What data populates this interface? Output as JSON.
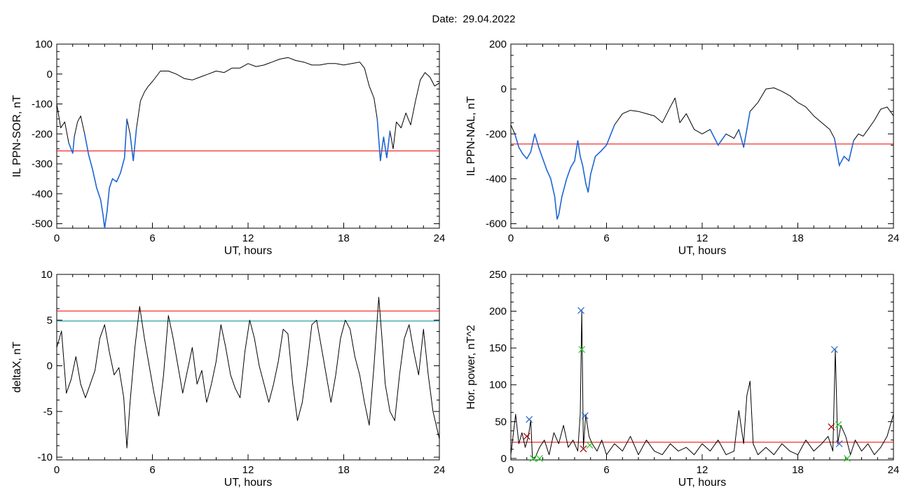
{
  "header": {
    "date_label": "Date:",
    "date_value": "29.04.2022"
  },
  "colors": {
    "axis": "#000000",
    "curve": "#000000",
    "highlight": "#1f66d6",
    "red": "#ee0000",
    "teal": "#008b8b",
    "green": "#22cc22",
    "darkred": "#aa0000",
    "blue": "#2266cc"
  },
  "chart_data": [
    {
      "type": "line",
      "xlabel": "UT, hours",
      "ylabel": "IL PPN-SOR, nT",
      "xlim": [
        0,
        24
      ],
      "ylim": [
        -515,
        100
      ],
      "xticks": [
        "0",
        "6",
        "12",
        "18",
        "24"
      ],
      "yticks": [
        "-500",
        "-400",
        "-300",
        "-200",
        "-100",
        "0",
        "100"
      ],
      "threshold": {
        "value": -257,
        "color": "red"
      },
      "highlight_below": -257,
      "series": [
        {
          "x": [
            0,
            0.25,
            0.5,
            0.75,
            1.0,
            1.1,
            1.3,
            1.5,
            1.75,
            2.0,
            2.25,
            2.5,
            2.75,
            2.9,
            3.0,
            3.15,
            3.3,
            3.5,
            3.75,
            4.0,
            4.25,
            4.4,
            4.6,
            4.8,
            5.0,
            5.25,
            5.5,
            5.75,
            6.0,
            6.5,
            7.0,
            7.5,
            8.0,
            8.5,
            9.0,
            9.5,
            10.0,
            10.5,
            11.0,
            11.5,
            12.0,
            12.5,
            13.0,
            13.5,
            14.0,
            14.5,
            15.0,
            15.5,
            16.0,
            16.5,
            17.0,
            17.5,
            18.0,
            18.5,
            19.0,
            19.3,
            19.6,
            19.9,
            20.1,
            20.3,
            20.5,
            20.7,
            20.9,
            21.1,
            21.3,
            21.6,
            21.9,
            22.2,
            22.5,
            22.8,
            23.1,
            23.4,
            23.7,
            24.0
          ],
          "y": [
            -100,
            -180,
            -160,
            -230,
            -265,
            -210,
            -160,
            -140,
            -200,
            -270,
            -320,
            -380,
            -420,
            -470,
            -515,
            -460,
            -380,
            -350,
            -360,
            -330,
            -280,
            -150,
            -200,
            -290,
            -180,
            -90,
            -60,
            -40,
            -25,
            10,
            10,
            0,
            -15,
            -20,
            -10,
            0,
            10,
            5,
            20,
            20,
            35,
            25,
            30,
            40,
            50,
            55,
            45,
            40,
            30,
            30,
            35,
            35,
            30,
            35,
            40,
            20,
            -40,
            -80,
            -150,
            -290,
            -210,
            -280,
            -190,
            -250,
            -160,
            -180,
            -130,
            -170,
            -90,
            -20,
            5,
            -10,
            -40,
            -30
          ]
        }
      ]
    },
    {
      "type": "line",
      "xlabel": "UT, hours",
      "ylabel": "IL PPN-NAL, nT",
      "xlim": [
        0,
        24
      ],
      "ylim": [
        -620,
        200
      ],
      "xticks": [
        "0",
        "6",
        "12",
        "18",
        "24"
      ],
      "yticks": [
        "-600",
        "-400",
        "-200",
        "0",
        "200"
      ],
      "threshold": {
        "value": -245,
        "color": "red"
      },
      "highlight_below": -245,
      "series": [
        {
          "x": [
            0,
            0.25,
            0.5,
            0.75,
            1.0,
            1.25,
            1.5,
            1.75,
            2.0,
            2.25,
            2.5,
            2.75,
            2.9,
            3.0,
            3.2,
            3.5,
            3.75,
            4.0,
            4.2,
            4.35,
            4.5,
            4.7,
            4.85,
            5.0,
            5.3,
            5.6,
            6.0,
            6.5,
            7.0,
            7.5,
            8.0,
            8.5,
            9.0,
            9.5,
            10.0,
            10.3,
            10.6,
            11.0,
            11.5,
            12.0,
            12.5,
            13.0,
            13.5,
            14.0,
            14.3,
            14.6,
            15.0,
            15.5,
            16.0,
            16.5,
            17.0,
            17.5,
            18.0,
            18.5,
            19.0,
            19.5,
            20.0,
            20.3,
            20.6,
            20.9,
            21.2,
            21.5,
            21.8,
            22.1,
            22.4,
            22.8,
            23.2,
            23.6,
            24.0
          ],
          "y": [
            -160,
            -200,
            -260,
            -290,
            -310,
            -280,
            -200,
            -260,
            -310,
            -360,
            -400,
            -480,
            -580,
            -560,
            -480,
            -400,
            -350,
            -320,
            -230,
            -300,
            -340,
            -420,
            -460,
            -380,
            -300,
            -280,
            -250,
            -160,
            -110,
            -95,
            -100,
            -110,
            -120,
            -150,
            -80,
            -40,
            -150,
            -110,
            -180,
            -200,
            -180,
            -250,
            -200,
            -220,
            -180,
            -260,
            -100,
            -60,
            0,
            5,
            -10,
            -30,
            -60,
            -80,
            -120,
            -150,
            -180,
            -220,
            -340,
            -300,
            -320,
            -230,
            -200,
            -210,
            -180,
            -140,
            -90,
            -80,
            -120
          ]
        }
      ]
    },
    {
      "type": "line",
      "xlabel": "UT, hours",
      "ylabel": "deltaX, nT",
      "xlim": [
        0,
        24
      ],
      "ylim": [
        -10.3,
        10
      ],
      "xticks": [
        "0",
        "6",
        "12",
        "18",
        "24"
      ],
      "yticks": [
        "-10",
        "-5",
        "0",
        "5",
        "10"
      ],
      "thresholds": [
        {
          "value": 6,
          "color": "red"
        },
        {
          "value": 4.9,
          "color": "teal"
        }
      ],
      "series": [
        {
          "x": [
            0,
            0.3,
            0.6,
            0.9,
            1.2,
            1.5,
            1.8,
            2.1,
            2.4,
            2.7,
            3.0,
            3.3,
            3.6,
            3.9,
            4.2,
            4.4,
            4.6,
            4.9,
            5.2,
            5.5,
            5.8,
            6.1,
            6.4,
            6.7,
            7.0,
            7.3,
            7.6,
            7.9,
            8.2,
            8.5,
            8.8,
            9.1,
            9.4,
            9.7,
            10.0,
            10.3,
            10.6,
            10.9,
            11.2,
            11.5,
            11.8,
            12.1,
            12.4,
            12.7,
            13.0,
            13.3,
            13.6,
            13.9,
            14.2,
            14.5,
            14.8,
            15.1,
            15.4,
            15.7,
            16.0,
            16.3,
            16.6,
            16.9,
            17.2,
            17.5,
            17.8,
            18.1,
            18.4,
            18.7,
            19.0,
            19.3,
            19.6,
            19.9,
            20.2,
            20.4,
            20.6,
            20.9,
            21.2,
            21.5,
            21.8,
            22.1,
            22.4,
            22.7,
            23.0,
            23.3,
            23.6,
            24.0
          ],
          "y": [
            2,
            3.8,
            -3,
            -1.5,
            1,
            -2,
            -3.5,
            -2,
            -0.5,
            3,
            4.5,
            1.5,
            -1,
            -0.2,
            -3.5,
            -9,
            -4,
            2,
            6.5,
            3,
            0,
            -3,
            -5.5,
            -1,
            5.5,
            3,
            0,
            -3,
            -0.5,
            2,
            -2,
            -0.5,
            -4,
            -2,
            0.5,
            4.5,
            2,
            -1,
            -2.5,
            -3.5,
            1.5,
            5,
            3,
            0,
            -2,
            -4,
            -2,
            0.5,
            4,
            3.5,
            -2,
            -6,
            -4,
            0,
            4.5,
            5,
            2,
            -1,
            -4,
            -1,
            3,
            5,
            4,
            1,
            -1,
            -4,
            -6.5,
            0,
            7.5,
            3,
            -2,
            -5,
            -6,
            -1,
            3,
            4.5,
            1.5,
            -1,
            4,
            -1,
            -5,
            -8
          ]
        }
      ]
    },
    {
      "type": "line",
      "xlabel": "UT, hours",
      "ylabel": "Hor. power, nT^2",
      "xlim": [
        0,
        24
      ],
      "ylim": [
        -2,
        250
      ],
      "xticks": [
        "0",
        "6",
        "12",
        "18",
        "24"
      ],
      "yticks": [
        "0",
        "50",
        "100",
        "150",
        "200",
        "250"
      ],
      "threshold": {
        "value": 22,
        "color": "red"
      },
      "series": [
        {
          "x": [
            0,
            0.3,
            0.5,
            0.7,
            0.9,
            1.1,
            1.25,
            1.35,
            1.5,
            1.8,
            2.1,
            2.4,
            2.7,
            3.0,
            3.3,
            3.6,
            3.9,
            4.2,
            4.35,
            4.45,
            4.55,
            4.7,
            4.9,
            5.1,
            5.4,
            5.7,
            6.0,
            6.5,
            7.0,
            7.5,
            8.0,
            8.5,
            9.0,
            9.5,
            10.0,
            10.5,
            11.0,
            11.5,
            12.0,
            12.5,
            13.0,
            13.5,
            14.0,
            14.3,
            14.6,
            14.8,
            15.0,
            15.2,
            15.5,
            16.0,
            16.5,
            17.0,
            17.5,
            18.0,
            18.5,
            19.0,
            19.5,
            19.9,
            20.2,
            20.35,
            20.5,
            20.7,
            21.0,
            21.3,
            21.6,
            22.0,
            22.4,
            22.8,
            23.2,
            23.6,
            24.0
          ],
          "y": [
            5,
            60,
            20,
            35,
            15,
            30,
            52,
            2,
            0,
            15,
            25,
            5,
            35,
            20,
            45,
            15,
            25,
            10,
            60,
            201,
            15,
            60,
            30,
            20,
            10,
            25,
            5,
            20,
            10,
            30,
            5,
            25,
            10,
            5,
            20,
            10,
            15,
            5,
            20,
            10,
            25,
            5,
            10,
            65,
            20,
            85,
            105,
            20,
            5,
            15,
            5,
            20,
            10,
            5,
            25,
            10,
            20,
            30,
            10,
            148,
            20,
            45,
            30,
            5,
            25,
            10,
            20,
            5,
            15,
            30,
            60
          ]
        }
      ],
      "markers": [
        {
          "x": 1.0,
          "y": 30,
          "color": "darkred"
        },
        {
          "x": 1.15,
          "y": 53,
          "color": "blue"
        },
        {
          "x": 1.4,
          "y": 0,
          "color": "green"
        },
        {
          "x": 1.8,
          "y": 0,
          "color": "green"
        },
        {
          "x": 4.4,
          "y": 201,
          "color": "blue"
        },
        {
          "x": 4.45,
          "y": 148,
          "color": "green"
        },
        {
          "x": 4.55,
          "y": 13,
          "color": "darkred"
        },
        {
          "x": 4.65,
          "y": 58,
          "color": "blue"
        },
        {
          "x": 4.95,
          "y": 18,
          "color": "green"
        },
        {
          "x": 20.1,
          "y": 43,
          "color": "darkred"
        },
        {
          "x": 20.3,
          "y": 148,
          "color": "blue"
        },
        {
          "x": 20.55,
          "y": 46,
          "color": "green"
        },
        {
          "x": 20.6,
          "y": 20,
          "color": "blue"
        },
        {
          "x": 21.1,
          "y": 0,
          "color": "green"
        }
      ]
    }
  ]
}
